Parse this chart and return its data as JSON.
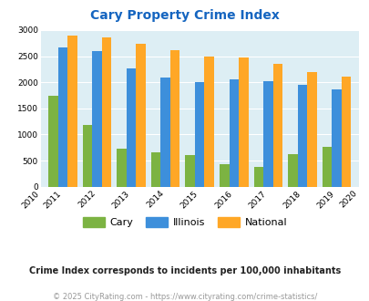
{
  "title": "Cary Property Crime Index",
  "bar_years": [
    2011,
    2012,
    2013,
    2014,
    2015,
    2016,
    2017,
    2018,
    2019
  ],
  "cary": [
    1750,
    1190,
    720,
    660,
    610,
    430,
    370,
    620,
    770
  ],
  "illinois": [
    2670,
    2590,
    2270,
    2090,
    2000,
    2060,
    2020,
    1950,
    1860
  ],
  "national": [
    2900,
    2860,
    2740,
    2610,
    2500,
    2470,
    2360,
    2190,
    2100
  ],
  "cary_color": "#7cb342",
  "illinois_color": "#3d8fdb",
  "national_color": "#ffa726",
  "bg_color": "#ddeef4",
  "title_color": "#1565c0",
  "ylim": [
    0,
    3000
  ],
  "yticks": [
    0,
    500,
    1000,
    1500,
    2000,
    2500,
    3000
  ],
  "legend_labels": [
    "Cary",
    "Illinois",
    "National"
  ],
  "footnote1": "Crime Index corresponds to incidents per 100,000 inhabitants",
  "footnote2": "© 2025 CityRating.com - https://www.cityrating.com/crime-statistics/",
  "footnote1_color": "#222222",
  "footnote2_color": "#999999"
}
